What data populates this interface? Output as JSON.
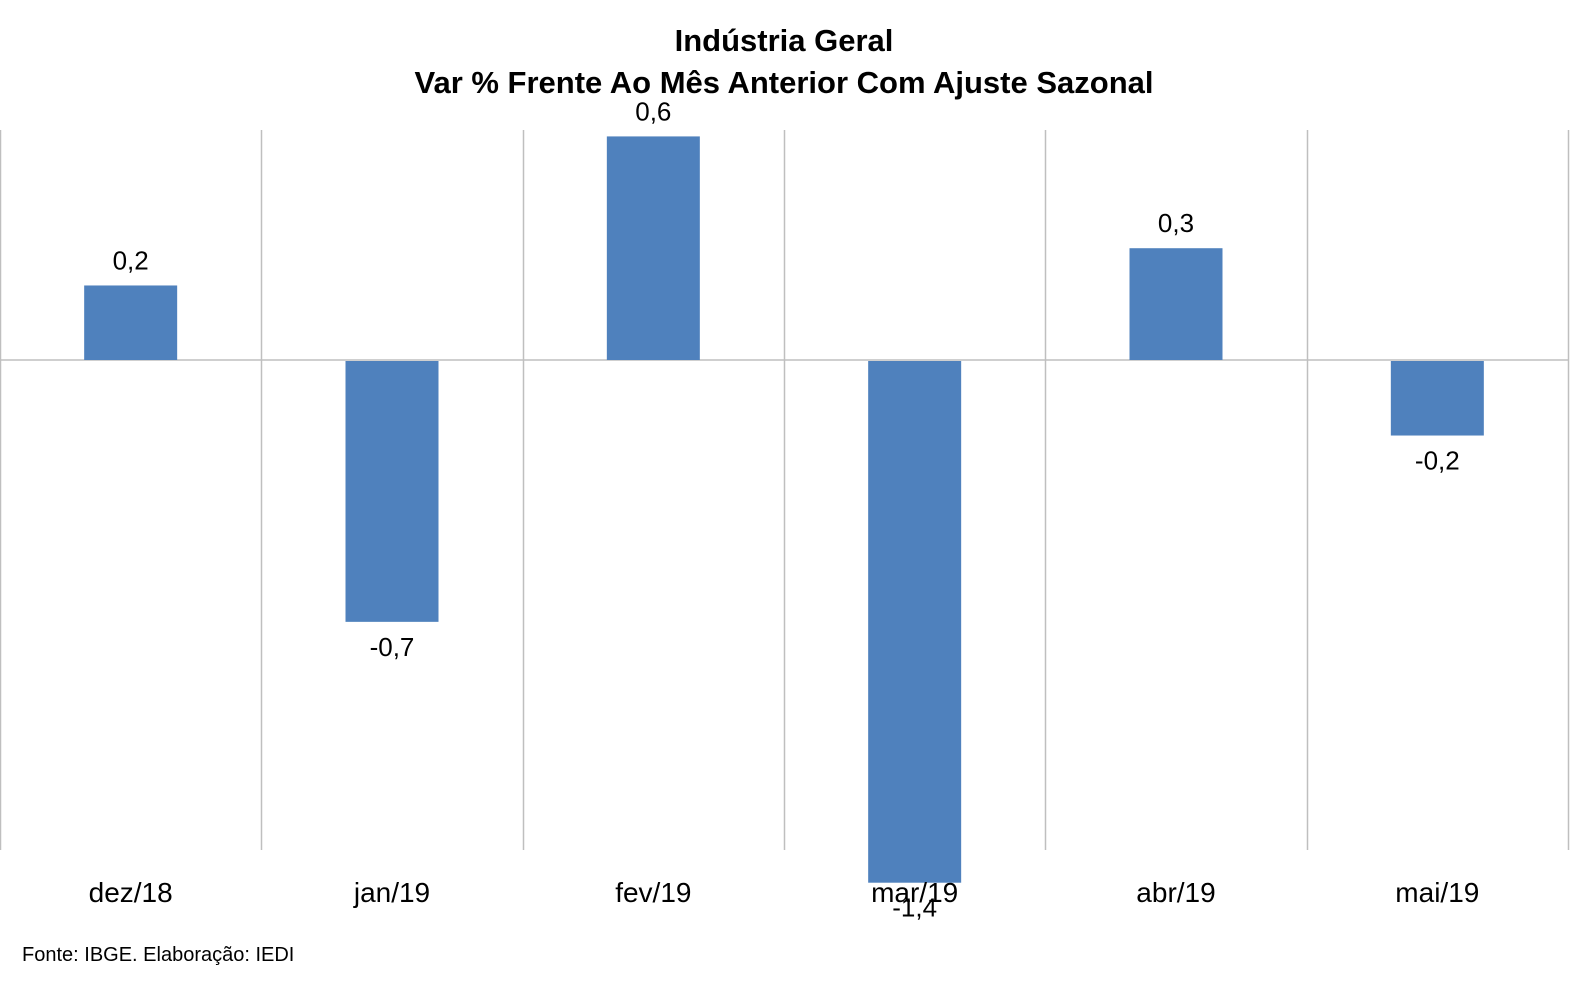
{
  "chart_data": {
    "type": "bar",
    "title": "Indústria Geral",
    "subtitle": "Var % Frente Ao Mês Anterior Com Ajuste Sazonal",
    "categories": [
      "dez/18",
      "jan/19",
      "fev/19",
      "mar/19",
      "abr/19",
      "mai/19"
    ],
    "values": [
      0.2,
      -0.7,
      0.6,
      -1.4,
      0.3,
      -0.2
    ],
    "value_labels": [
      "0,2",
      "-0,7",
      "0,6",
      "-1,4",
      "0,3",
      "-0,2"
    ],
    "xlabel": "",
    "ylabel": "",
    "ylim": [
      -1.6,
      0.72
    ],
    "bar_color": "#4F81BD",
    "grid_color": "#BFBFBF",
    "legend": "none"
  },
  "source": "Fonte: IBGE. Elaboração: IEDI"
}
